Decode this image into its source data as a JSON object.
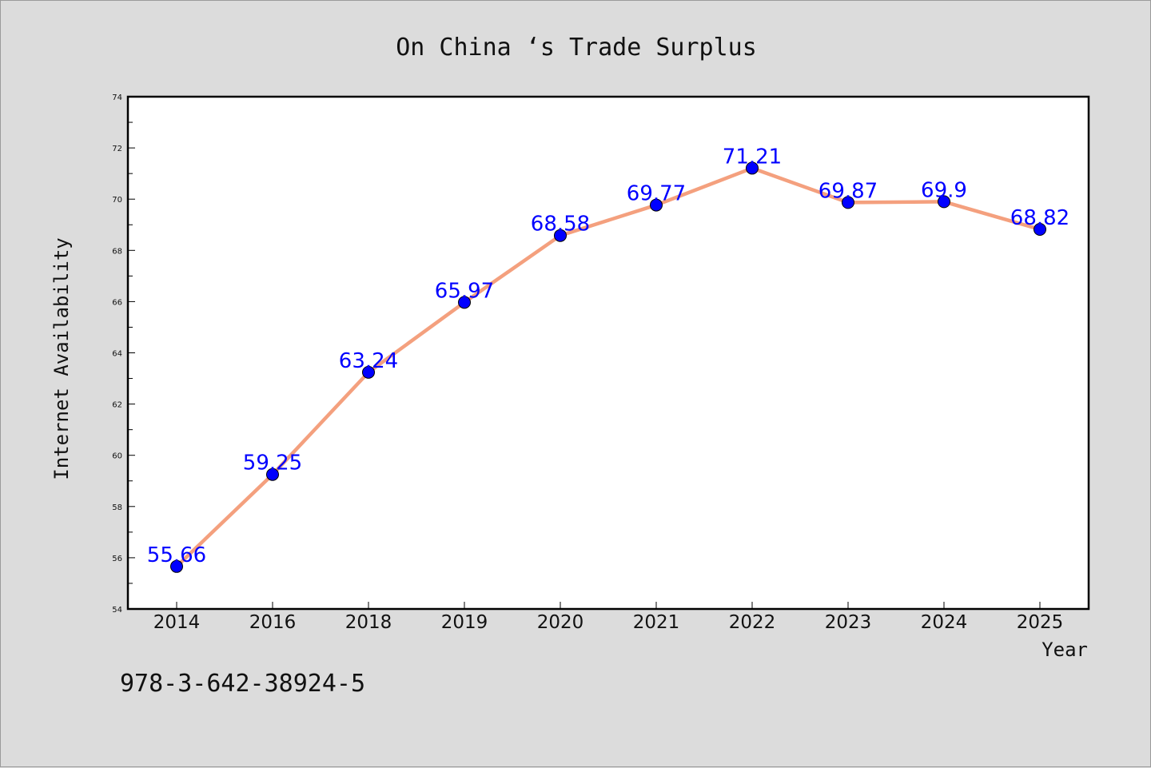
{
  "chart_data": {
    "type": "line",
    "title": "On China ‘s Trade Surplus",
    "xlabel": "Year",
    "ylabel": "Internet Availability",
    "categories": [
      "2014",
      "2016",
      "2018",
      "2019",
      "2020",
      "2021",
      "2022",
      "2023",
      "2024",
      "2025"
    ],
    "series": [
      {
        "values": [
          55.66,
          59.25,
          63.24,
          65.97,
          68.58,
          69.77,
          71.21,
          69.87,
          69.9,
          68.82
        ],
        "labels": [
          "55.66",
          "59.25",
          "63.24",
          "65.97",
          "68.58",
          "69.77",
          "71.21",
          "69.87",
          "69.9",
          "68.82"
        ],
        "line_color": "#f4a07e",
        "marker_color": "#0000ff"
      }
    ],
    "ylim": [
      54,
      74
    ],
    "yticks": [
      "54",
      "56",
      "58",
      "60",
      "62",
      "64",
      "66",
      "68",
      "70",
      "72",
      "74"
    ],
    "grid": false,
    "legend": "none",
    "plot_background": "#ffffff",
    "figure_background": "#dcdcdc"
  },
  "footnote": "978-3-642-38924-5"
}
